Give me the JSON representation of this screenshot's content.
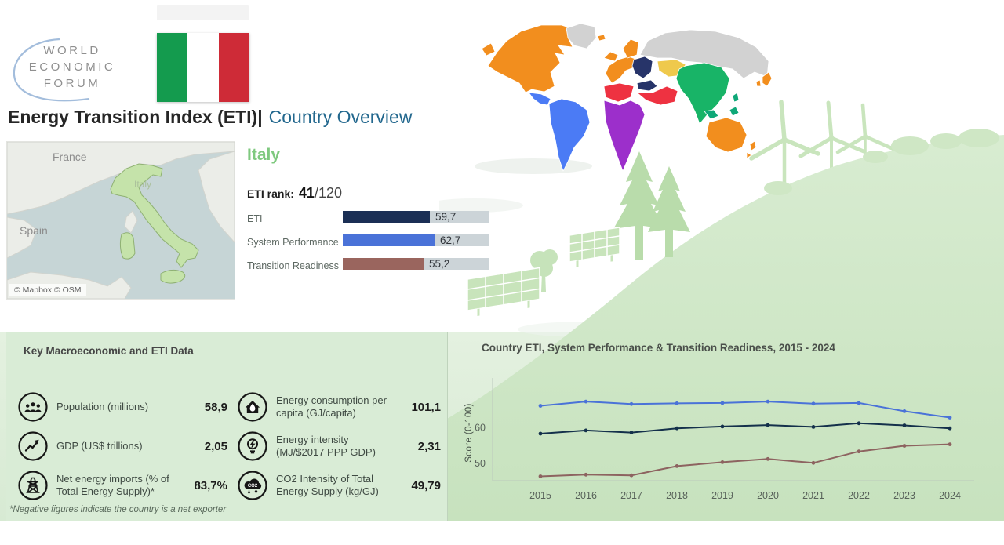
{
  "logo": {
    "lines": [
      "WORLD",
      "ECONOMIC",
      "FORUM"
    ]
  },
  "title": {
    "main": "Energy Transition Index (ETI)|",
    "accent": "Country Overview"
  },
  "flag": {
    "colors": [
      "#149B4E",
      "#FFFFFF",
      "#CE2B37"
    ]
  },
  "minimap": {
    "labels": {
      "neighbor1": "France",
      "neighbor2": "Spain",
      "country": "Italy"
    },
    "attribution": "© Mapbox  © OSM",
    "colors": {
      "sea": "#c6d5d6",
      "land": "#ebede8",
      "country_fill": "#c5e3aa",
      "country_border": "#8fb173"
    }
  },
  "country": {
    "name": "Italy",
    "rank_label": "ETI rank:",
    "rank_value": "41",
    "rank_total": "/120",
    "bar_max": 100,
    "bars": [
      {
        "label": "ETI",
        "value": 59.7,
        "display": "59,7",
        "color": "#1b2f55"
      },
      {
        "label": "System Performance",
        "value": 62.7,
        "display": "62,7",
        "color": "#4a72d8"
      },
      {
        "label": "Transition Readiness",
        "value": 55.2,
        "display": "55,2",
        "color": "#9a655e"
      }
    ]
  },
  "key_data": {
    "title": "Key Macroeconomic and ETI Data",
    "items": [
      {
        "icon": "population-icon",
        "label": "Population (millions)",
        "value": "58,9"
      },
      {
        "icon": "gdp-icon",
        "label": "GDP (US$ trillions)",
        "value": "2,05"
      },
      {
        "icon": "net-energy-imports-icon",
        "label": "Net energy imports (% of Total Energy Supply)*",
        "value": "83,7%"
      },
      {
        "icon": "energy-consumption-icon",
        "label": "Energy consumption per capita (GJ/capita)",
        "value": "101,1"
      },
      {
        "icon": "energy-intensity-icon",
        "label": "Energy intensity (MJ/$2017 PPP GDP)",
        "value": "2,31"
      },
      {
        "icon": "co2-intensity-icon",
        "label": "CO2 Intensity of Total Energy Supply (kg/GJ)",
        "value": "49,79"
      }
    ],
    "footnote": "*Negative figures indicate the country is a net exporter"
  },
  "chart_data": {
    "type": "line",
    "title": "Country ETI, System Performance & Transition Readiness, 2015 - 2024",
    "ylabel": "Score (0-100)",
    "x": [
      2015,
      2016,
      2017,
      2018,
      2019,
      2020,
      2021,
      2022,
      2023,
      2024
    ],
    "yticks": [
      50,
      60
    ],
    "ylim": [
      45,
      72.5
    ],
    "grid": false,
    "legend": false,
    "series": [
      {
        "name": "System Performance",
        "color": "#4a72d8",
        "values": [
          66.0,
          67.2,
          66.5,
          66.7,
          66.8,
          67.2,
          66.6,
          66.8,
          64.5,
          62.7
        ]
      },
      {
        "name": "ETI",
        "color": "#14304b",
        "values": [
          58.2,
          59.1,
          58.5,
          59.7,
          60.2,
          60.6,
          60.1,
          61.1,
          60.5,
          59.7
        ]
      },
      {
        "name": "Transition Readiness",
        "color": "#8d6360",
        "values": [
          46.2,
          46.7,
          46.5,
          49.1,
          50.2,
          51.1,
          50.0,
          53.2,
          54.8,
          55.2
        ]
      }
    ]
  },
  "world_map": {
    "region_colors": {
      "advanced_economies": "#F28E1E",
      "emerging_europe": "#273469",
      "eurasia": "#EFC94C",
      "middle_east_north_africa": "#EE3241",
      "sub_saharan_africa": "#9C2FCB",
      "emerging_asia": "#18B467",
      "asia_islands": "#0FA878",
      "latin_america": "#4B7BF5",
      "other": "#D2D2D2"
    }
  }
}
